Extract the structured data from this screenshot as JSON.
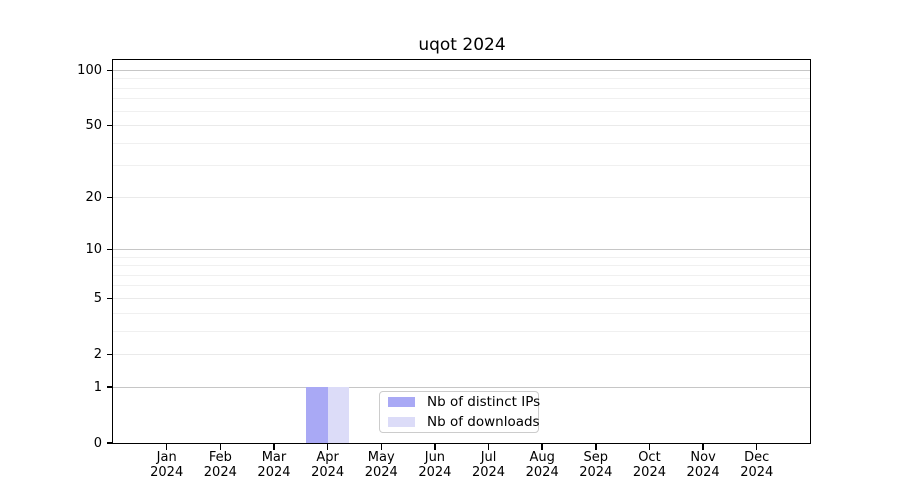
{
  "figure": {
    "background": "#ffffff"
  },
  "chart_data": {
    "type": "bar",
    "title": "uqot 2024",
    "categories": [
      "Jan 2024",
      "Feb 2024",
      "Mar 2024",
      "Apr 2024",
      "May 2024",
      "Jun 2024",
      "Jul 2024",
      "Aug 2024",
      "Sep 2024",
      "Oct 2024",
      "Nov 2024",
      "Dec 2024"
    ],
    "x_tick_months": [
      "Jan",
      "Feb",
      "Mar",
      "Apr",
      "May",
      "Jun",
      "Jul",
      "Aug",
      "Sep",
      "Oct",
      "Nov",
      "Dec"
    ],
    "x_tick_year": "2024",
    "series": [
      {
        "name": "Nb of distinct IPs",
        "color": "#a9a9f5",
        "values": [
          0,
          0,
          0,
          1,
          0,
          0,
          0,
          0,
          0,
          0,
          0,
          0
        ]
      },
      {
        "name": "Nb of downloads",
        "color": "#dcdcf8",
        "values": [
          0,
          0,
          0,
          1,
          0,
          0,
          0,
          0,
          0,
          0,
          0,
          0
        ]
      }
    ],
    "xlabel": "",
    "ylabel": "",
    "yscale": "log1p",
    "ylim": [
      0,
      100
    ],
    "y_major_ticks": [
      0,
      1,
      2,
      5,
      10,
      20,
      50,
      100
    ],
    "y_minor_ticks": [
      3,
      4,
      6,
      7,
      8,
      9,
      30,
      40,
      60,
      70,
      80,
      90
    ],
    "grid": true,
    "legend_position": "lower center",
    "colors": {
      "power10_grid": "#c6c6c6",
      "other_major_grid": "#eaeaea",
      "minor_grid": "#f0f0f0",
      "spine": "#000000",
      "text": "#000000"
    }
  },
  "legend": {
    "items": [
      {
        "label": "Nb of distinct IPs",
        "color": "#a9a9f5"
      },
      {
        "label": "Nb of downloads",
        "color": "#dcdcf8"
      }
    ]
  }
}
